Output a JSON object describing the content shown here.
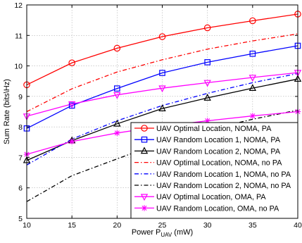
{
  "chart_data": {
    "type": "line",
    "xlabel": "Power P",
    "xlabel_sub": "UAV",
    "xlabel_unit": " (mW)",
    "ylabel": "Sum Rate (bits\\Hz)",
    "xlim": [
      10,
      40
    ],
    "ylim": [
      5,
      12
    ],
    "xticks": [
      10,
      15,
      20,
      25,
      30,
      35,
      40
    ],
    "yticks": [
      5,
      6,
      7,
      8,
      9,
      10,
      11,
      12
    ],
    "grid": true,
    "legend_position": "bottom-right",
    "series": [
      {
        "name": "UAV Optimal Location, NOMA, PA",
        "color": "#ff0000",
        "dash": "solid",
        "marker": "circle",
        "x": [
          10,
          15,
          20,
          25,
          30,
          35,
          40
        ],
        "y": [
          9.38,
          10.1,
          10.58,
          10.96,
          11.25,
          11.48,
          11.7
        ]
      },
      {
        "name": "UAV Random Location 1, NOMA, PA",
        "color": "#0000ff",
        "dash": "solid",
        "marker": "square",
        "x": [
          10,
          15,
          20,
          25,
          30,
          35,
          40
        ],
        "y": [
          7.95,
          8.7,
          9.26,
          9.77,
          10.12,
          10.4,
          10.66
        ]
      },
      {
        "name": "UAV Random Location 2, NOMA, PA",
        "color": "#000000",
        "dash": "solid",
        "marker": "triangle-up",
        "x": [
          10,
          15,
          20,
          25,
          30,
          35,
          40
        ],
        "y": [
          6.9,
          7.55,
          8.1,
          8.6,
          8.95,
          9.27,
          9.57
        ]
      },
      {
        "name": "UAV Optimal Location, NOMA, no PA",
        "color": "#ff0000",
        "dash": "dashdot",
        "marker": "none",
        "x": [
          10,
          15,
          20,
          25,
          30,
          35,
          40
        ],
        "y": [
          8.5,
          9.25,
          9.8,
          10.2,
          10.55,
          10.82,
          11.05
        ]
      },
      {
        "name": "UAV Random Location 1, NOMA, no PA",
        "color": "#0000ff",
        "dash": "dashdot",
        "marker": "none",
        "x": [
          10,
          15,
          20,
          25,
          30,
          35,
          40
        ],
        "y": [
          6.75,
          7.6,
          8.2,
          8.7,
          9.1,
          9.45,
          9.75
        ]
      },
      {
        "name": "UAV Random Location 2, NOMA, no PA",
        "color": "#000000",
        "dash": "dashdot",
        "marker": "none",
        "x": [
          10,
          15,
          20,
          25,
          30,
          35,
          40
        ],
        "y": [
          5.55,
          6.4,
          6.95,
          7.5,
          7.9,
          8.25,
          8.55
        ]
      },
      {
        "name": "UAV Optimal Location, OMA, PA",
        "color": "#ff00ff",
        "dash": "solid",
        "marker": "triangle-down",
        "x": [
          10,
          15,
          20,
          25,
          30,
          35,
          40
        ],
        "y": [
          8.35,
          8.75,
          9.05,
          9.27,
          9.45,
          9.62,
          9.78
        ]
      },
      {
        "name": "UAV Random Location, OMA, no PA",
        "color": "#ff00ff",
        "dash": "solid",
        "marker": "star",
        "x": [
          10,
          15,
          20,
          25,
          30,
          35,
          40
        ],
        "y": [
          7.1,
          7.52,
          7.8,
          8.02,
          8.2,
          8.36,
          8.5
        ]
      }
    ]
  }
}
